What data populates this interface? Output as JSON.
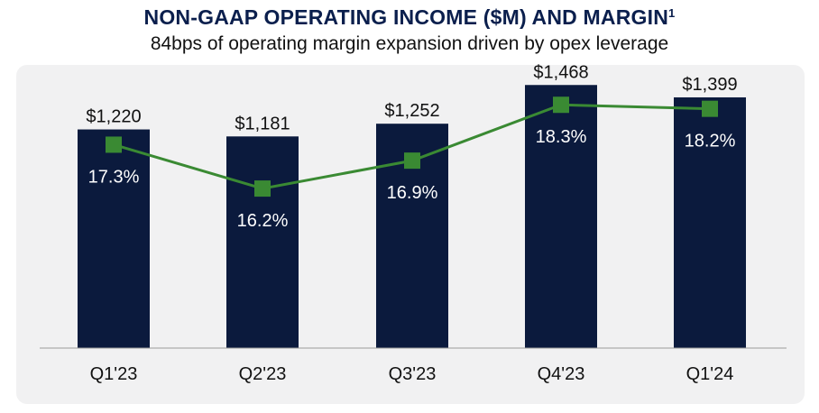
{
  "title": "NON-GAAP OPERATING INCOME ($M) AND MARGIN",
  "title_superscript": "1",
  "subtitle": "84bps of operating margin expansion driven by opex leverage",
  "chart_data": {
    "type": "bar",
    "categories": [
      "Q1'23",
      "Q2'23",
      "Q3'23",
      "Q4'23",
      "Q1'24"
    ],
    "series": [
      {
        "type": "bar",
        "values": [
          1220,
          1181,
          1252,
          1468,
          1399
        ],
        "labels": [
          "$1,220",
          "$1,181",
          "$1,252",
          "$1,468",
          "$1,399"
        ],
        "color": "#0b1a3d"
      },
      {
        "type": "line",
        "values": [
          17.3,
          16.2,
          16.9,
          18.3,
          18.2
        ],
        "labels": [
          "17.3%",
          "16.2%",
          "16.9%",
          "18.3%",
          "18.2%"
        ],
        "color": "#3a8a33"
      }
    ],
    "bar_axis": [
      0,
      1580
    ],
    "line_axis": [
      12.2,
      19.3
    ],
    "grid": false,
    "legend": "none"
  }
}
